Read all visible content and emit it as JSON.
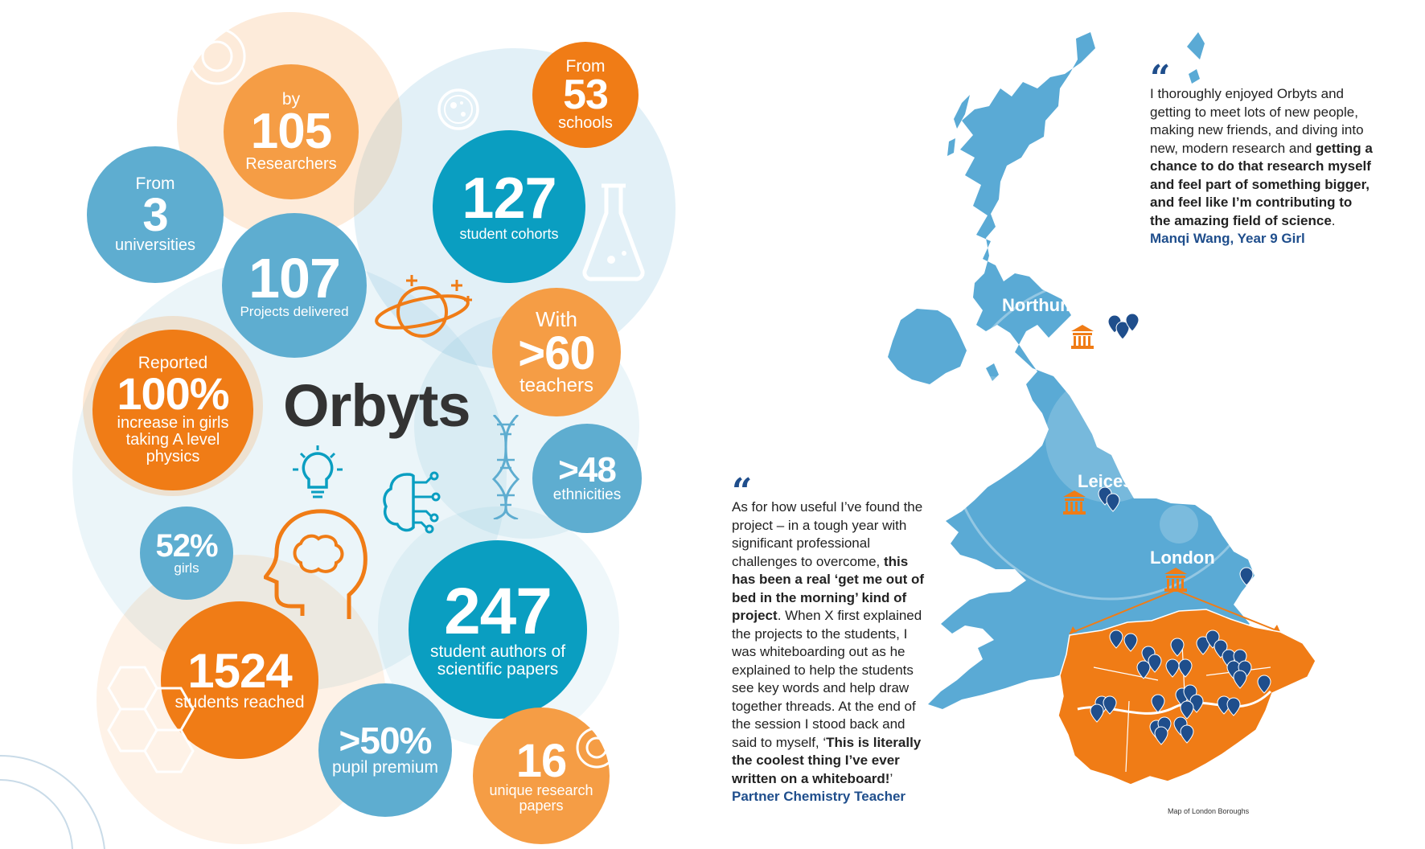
{
  "colors": {
    "orange": "#f07c16",
    "light_orange": "#f59d45",
    "teal": "#0a9ec1",
    "light_blue": "#5eadd0",
    "map_blue": "#5aaad5",
    "navy": "#1f4e8c",
    "dark_text": "#333333"
  },
  "title": "Orbyts",
  "stats": {
    "researchers": {
      "top": "by",
      "number": "105",
      "bottom": "Researchers"
    },
    "schools": {
      "top": "From",
      "number": "53",
      "bottom": "schools"
    },
    "universities": {
      "top": "From",
      "number": "3",
      "bottom": "universities"
    },
    "cohorts": {
      "number": "127",
      "bottom": "student cohorts"
    },
    "projects": {
      "number": "107",
      "bottom": "Projects delivered"
    },
    "teachers": {
      "top": "With",
      "number": ">60",
      "bottom": "teachers"
    },
    "girls_physics": {
      "top": "Reported",
      "number": "100%",
      "bottom": "increase in girls taking A level physics"
    },
    "ethnicities": {
      "number": ">48",
      "bottom": "ethnicities"
    },
    "girls": {
      "number": "52%",
      "bottom": "girls"
    },
    "authors": {
      "number": "247",
      "bottom": "student authors of scientific papers"
    },
    "students": {
      "number": "1524",
      "bottom": "students reached"
    },
    "premium": {
      "number": ">50%",
      "bottom": "pupil premium"
    },
    "papers": {
      "number": "16",
      "bottom": "unique research papers"
    }
  },
  "icons": [
    "planet-icon",
    "lightbulb-icon",
    "head-brain-icon",
    "circuit-brain-icon",
    "dna-icon",
    "flask-icon",
    "petri-dish-icon",
    "hexagon-molecule-icon",
    "university-icon",
    "location-pin-icon",
    "quote-icon"
  ],
  "map": {
    "regions": [
      "Northumbria",
      "Leicester",
      "London"
    ],
    "caption": "Map of London Boroughs"
  },
  "quote1": {
    "normal": "I thoroughly enjoyed Orbyts and getting to meet lots of new people, making new friends, and diving into new, modern research and ",
    "bold": "getting a chance to do that research myself and feel part of something bigger, and feel like I’m contributing to the amazing field of science",
    "end": ".",
    "attribution": "Manqi Wang, Year 9 Girl"
  },
  "quote2": {
    "part1": "As for how useful I’ve found the project – in a tough year with significant professional challenges to overcome, ",
    "bold1": "this has been a real ‘get me out of bed in the morning’ kind of project",
    "part2": ". When X first explained the projects to the students, I was whiteboarding out as he explained to help the students see key words and help draw together threads. At the end of the session I stood back and said to myself, ‘",
    "bold2": "This is literally the coolest thing I’ve ever written on a whiteboard!",
    "part3": "’",
    "attribution": "Partner Chemistry Teacher"
  }
}
